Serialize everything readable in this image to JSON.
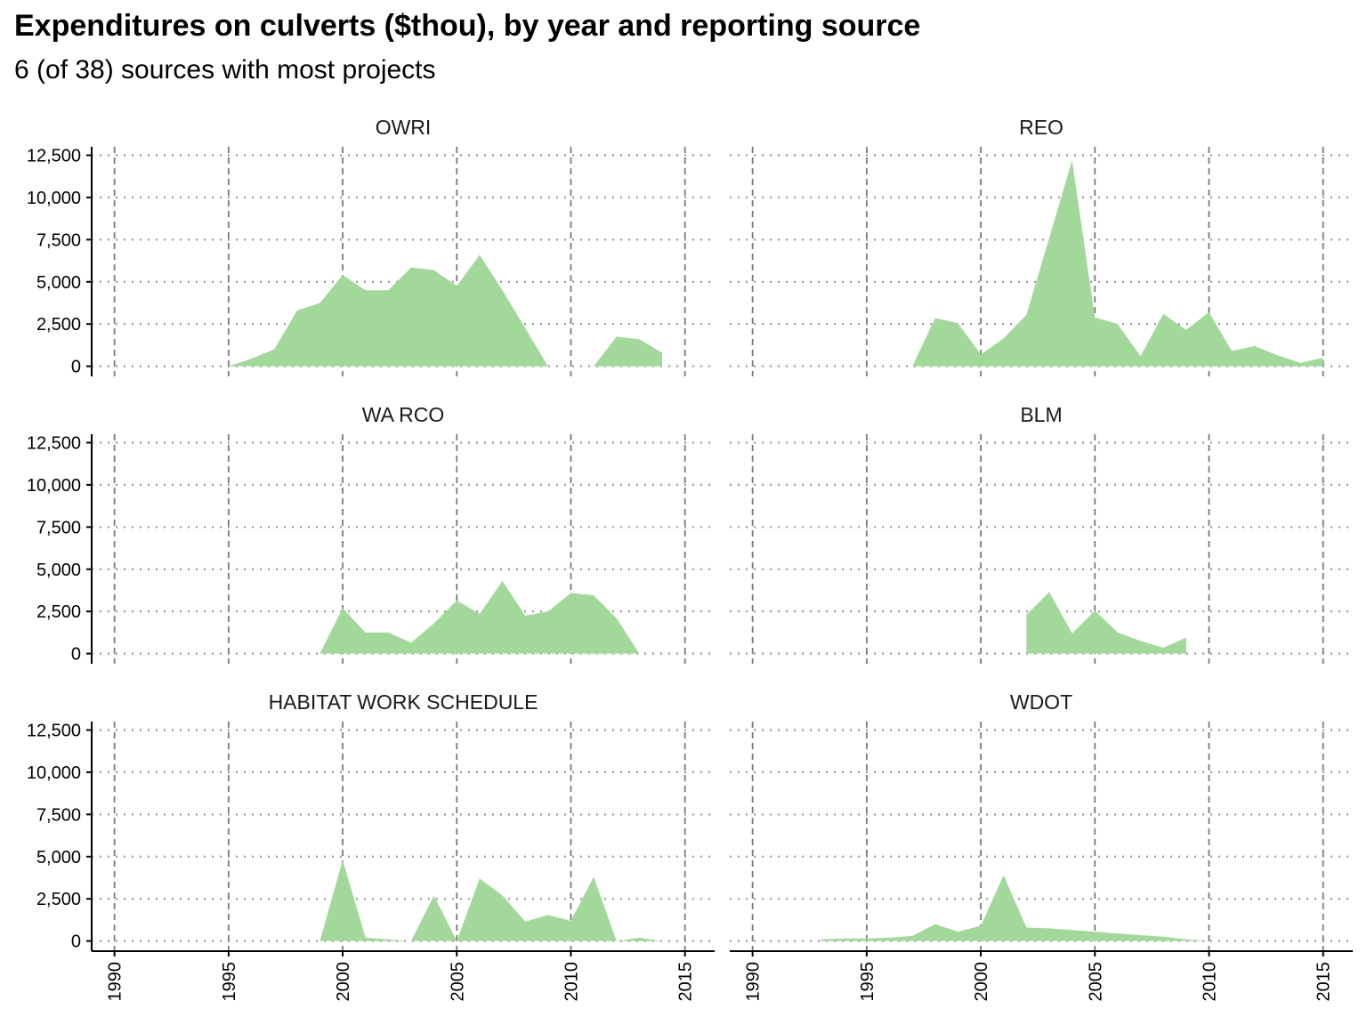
{
  "title": "Expenditures on culverts ($thou), by year and reporting source",
  "subtitle": "6 (of 38) sources with most projects",
  "chart_data": {
    "type": "area",
    "x_ticks": [
      1990,
      1995,
      2000,
      2005,
      2010,
      2015
    ],
    "y_ticks": [
      0,
      2500,
      5000,
      7500,
      10000,
      12500
    ],
    "y_tick_labels": [
      "0",
      "2,500",
      "5,000",
      "7,500",
      "10,000",
      "12,500"
    ],
    "xlim": [
      1989,
      2016.3
    ],
    "ylim": [
      -600,
      13000
    ],
    "grid": "dotted horizontal, dashed vertical",
    "fill_color": "#a2d89a",
    "panels": [
      {
        "label": "OWRI",
        "x": [
          1995,
          1996,
          1997,
          1998,
          1999,
          2000,
          2001,
          2002,
          2003,
          2004,
          2005,
          2006,
          2007,
          2008,
          2009,
          2010,
          2011,
          2012,
          2013,
          2014
        ],
        "values": [
          0,
          450,
          1000,
          3300,
          3750,
          5400,
          4500,
          4500,
          5850,
          5700,
          4750,
          6600,
          4500,
          2250,
          0,
          0,
          0,
          1750,
          1600,
          800
        ]
      },
      {
        "label": "REO",
        "x": [
          1997,
          1998,
          1999,
          2000,
          2001,
          2002,
          2003,
          2004,
          2005,
          2006,
          2007,
          2008,
          2009,
          2010,
          2011,
          2012,
          2013,
          2014,
          2015
        ],
        "values": [
          0,
          2850,
          2550,
          700,
          1650,
          3050,
          7600,
          12200,
          2900,
          2500,
          600,
          3100,
          2150,
          3200,
          900,
          1200,
          650,
          200,
          500
        ]
      },
      {
        "label": "WA RCO",
        "x": [
          1999,
          2000,
          2001,
          2002,
          2003,
          2004,
          2005,
          2006,
          2007,
          2008,
          2009,
          2010,
          2011,
          2012,
          2013
        ],
        "values": [
          0,
          2700,
          1250,
          1250,
          650,
          1800,
          3150,
          2350,
          4300,
          2250,
          2500,
          3600,
          3450,
          2100,
          0
        ]
      },
      {
        "label": "BLM",
        "x": [
          2002,
          2003,
          2004,
          2005,
          2006,
          2007,
          2008,
          2009
        ],
        "values": [
          2300,
          3650,
          1200,
          2550,
          1250,
          750,
          350,
          950
        ]
      },
      {
        "label": "HABITAT WORK SCHEDULE",
        "x": [
          1999,
          2000,
          2001,
          2002,
          2003,
          2004,
          2005,
          2006,
          2007,
          2008,
          2009,
          2010,
          2011,
          2012,
          2013,
          2014
        ],
        "values": [
          0,
          4800,
          200,
          100,
          0,
          2700,
          0,
          3700,
          2700,
          1150,
          1550,
          1200,
          3800,
          0,
          200,
          0
        ]
      },
      {
        "label": "WDOT",
        "x": [
          1993,
          1994,
          1995,
          1996,
          1997,
          1998,
          1999,
          2000,
          2001,
          2002,
          2003,
          2004,
          2005,
          2006,
          2007,
          2008,
          2009,
          2010
        ],
        "values": [
          100,
          150,
          150,
          200,
          300,
          1000,
          550,
          900,
          3900,
          800,
          750,
          650,
          550,
          450,
          350,
          250,
          100,
          0
        ]
      }
    ]
  }
}
